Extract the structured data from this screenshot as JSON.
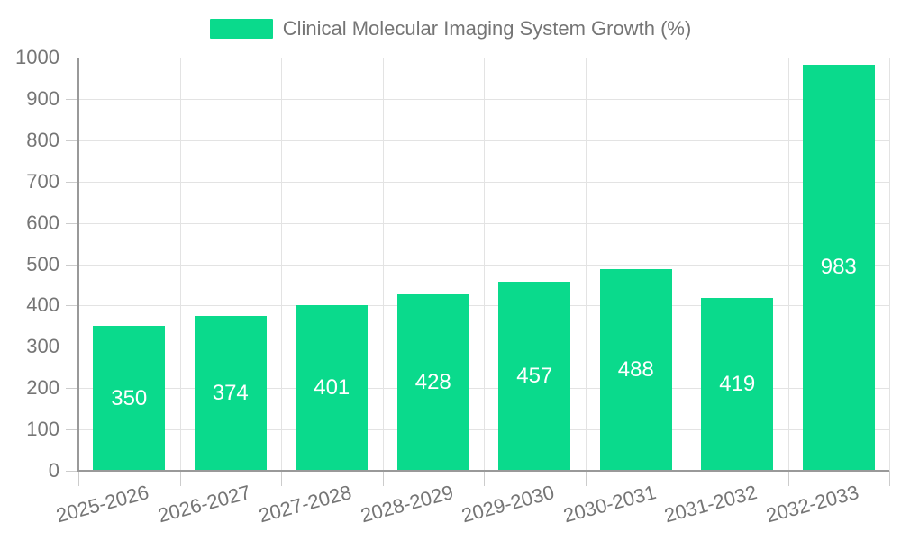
{
  "legend": {
    "label": "Clinical Molecular Imaging System Growth (%)"
  },
  "colors": {
    "bar": "#0ada8c",
    "text": "#757575",
    "grid": "#e3e3e3",
    "axis": "#999999",
    "tick": "#cccccc",
    "value_label": "#ffffff",
    "background": "#ffffff"
  },
  "chart_data": {
    "type": "bar",
    "title": "Clinical Molecular Imaging System Growth (%)",
    "series_name": "Clinical Molecular Imaging System Growth (%)",
    "categories": [
      "2025-2026",
      "2026-2027",
      "2027-2028",
      "2028-2029",
      "2029-2030",
      "2030-2031",
      "2031-2032",
      "2032-2033"
    ],
    "values": [
      350,
      374,
      401,
      428,
      457,
      488,
      419,
      983
    ],
    "xlabel": "",
    "ylabel": "",
    "ylim": [
      0,
      1000
    ],
    "y_ticks": [
      0,
      100,
      200,
      300,
      400,
      500,
      600,
      700,
      800,
      900,
      1000
    ],
    "grid": true,
    "legend_position": "top-center",
    "bar_label_position": "inside-center",
    "x_label_rotation_deg": -15
  }
}
